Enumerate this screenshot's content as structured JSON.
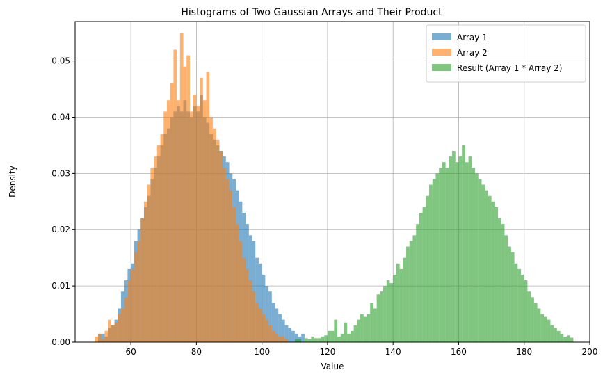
{
  "chart_data": {
    "type": "histogram",
    "title": "Histograms of Two Gaussian Arrays and Their Product",
    "xlabel": "Value",
    "ylabel": "Density",
    "xlim": [
      43,
      200
    ],
    "ylim": [
      0,
      0.057
    ],
    "x_ticks": [
      60,
      80,
      100,
      120,
      140,
      160,
      180,
      200
    ],
    "y_ticks": [
      0.0,
      0.01,
      0.02,
      0.03,
      0.04,
      0.05
    ],
    "grid": true,
    "legend_position": "top-right",
    "bar_opacity": 0.6,
    "series": [
      {
        "name": "Array 1",
        "color": "#1f77b4",
        "bin_start": 50,
        "bin_width": 1,
        "densities": [
          0.0015,
          0.0015,
          0.001,
          0.0025,
          0.003,
          0.004,
          0.006,
          0.009,
          0.011,
          0.013,
          0.014,
          0.018,
          0.02,
          0.022,
          0.024,
          0.026,
          0.029,
          0.031,
          0.033,
          0.035,
          0.037,
          0.038,
          0.04,
          0.041,
          0.042,
          0.041,
          0.043,
          0.041,
          0.04,
          0.042,
          0.041,
          0.044,
          0.04,
          0.039,
          0.037,
          0.036,
          0.035,
          0.034,
          0.033,
          0.032,
          0.03,
          0.029,
          0.027,
          0.025,
          0.023,
          0.021,
          0.019,
          0.018,
          0.015,
          0.014,
          0.012,
          0.01,
          0.009,
          0.007,
          0.006,
          0.005,
          0.004,
          0.003,
          0.0025,
          0.002,
          0.0015,
          0.001,
          0.0015
        ]
      },
      {
        "name": "Array 2",
        "color": "#ff7f0e",
        "bin_start": 49,
        "bin_width": 1,
        "densities": [
          0.001,
          0.0015,
          0.0005,
          0.002,
          0.004,
          0.003,
          0.0035,
          0.005,
          0.006,
          0.008,
          0.011,
          0.013,
          0.016,
          0.018,
          0.022,
          0.025,
          0.028,
          0.031,
          0.033,
          0.035,
          0.037,
          0.041,
          0.043,
          0.046,
          0.052,
          0.043,
          0.055,
          0.049,
          0.051,
          0.041,
          0.044,
          0.042,
          0.047,
          0.043,
          0.048,
          0.04,
          0.038,
          0.036,
          0.034,
          0.031,
          0.029,
          0.027,
          0.024,
          0.021,
          0.018,
          0.015,
          0.013,
          0.011,
          0.009,
          0.007,
          0.006,
          0.005,
          0.004,
          0.003,
          0.002,
          0.0015,
          0.001,
          0.001,
          0.0005
        ]
      },
      {
        "name": "Result (Array 1 * Array 2)",
        "color": "#2ca02c",
        "bin_start": 110,
        "bin_width": 1,
        "densities": [
          0.0005,
          0.0005,
          0,
          0.0007,
          0.0005,
          0.001,
          0.0007,
          0.0007,
          0.001,
          0.0012,
          0.002,
          0.002,
          0.004,
          0.001,
          0.0015,
          0.0035,
          0.0015,
          0.002,
          0.003,
          0.004,
          0.005,
          0.0045,
          0.005,
          0.007,
          0.006,
          0.0085,
          0.009,
          0.01,
          0.011,
          0.0105,
          0.012,
          0.014,
          0.013,
          0.015,
          0.017,
          0.018,
          0.019,
          0.021,
          0.023,
          0.024,
          0.026,
          0.028,
          0.029,
          0.03,
          0.031,
          0.032,
          0.031,
          0.033,
          0.034,
          0.032,
          0.033,
          0.035,
          0.032,
          0.033,
          0.031,
          0.03,
          0.029,
          0.028,
          0.027,
          0.026,
          0.025,
          0.024,
          0.022,
          0.021,
          0.019,
          0.017,
          0.016,
          0.014,
          0.013,
          0.012,
          0.011,
          0.009,
          0.008,
          0.007,
          0.006,
          0.005,
          0.0045,
          0.004,
          0.003,
          0.0025,
          0.002,
          0.0015,
          0.001,
          0.0012,
          0.0008
        ]
      }
    ]
  }
}
